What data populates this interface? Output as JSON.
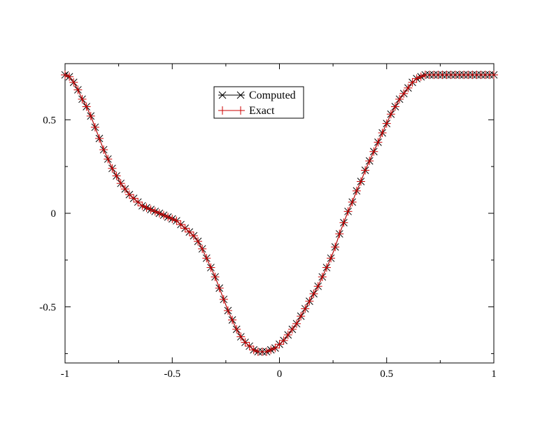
{
  "chart_data": {
    "type": "line",
    "title": "",
    "xlabel": "",
    "ylabel": "",
    "xlim": [
      -1,
      1
    ],
    "ylim": [
      -0.8,
      0.8
    ],
    "xticks": [
      -1,
      -0.5,
      0,
      0.5,
      1
    ],
    "xtick_labels": [
      "-1",
      "-0.5",
      "0",
      "0.5",
      "1"
    ],
    "yticks": [
      -0.5,
      0,
      0.5
    ],
    "ytick_labels": [
      "-0.5",
      "0",
      "0.5"
    ],
    "grid": false,
    "legend_position": "top-center",
    "x": [
      -1.0,
      -0.98,
      -0.96,
      -0.94,
      -0.92,
      -0.9,
      -0.88,
      -0.86,
      -0.84,
      -0.82,
      -0.8,
      -0.78,
      -0.76,
      -0.74,
      -0.72,
      -0.7,
      -0.68,
      -0.66,
      -0.64,
      -0.62,
      -0.6,
      -0.58,
      -0.56,
      -0.54,
      -0.52,
      -0.5,
      -0.48,
      -0.46,
      -0.44,
      -0.42,
      -0.4,
      -0.38,
      -0.36,
      -0.34,
      -0.32,
      -0.3,
      -0.28,
      -0.26,
      -0.24,
      -0.22,
      -0.2,
      -0.18,
      -0.16,
      -0.14,
      -0.12,
      -0.1,
      -0.08,
      -0.06,
      -0.04,
      -0.02,
      0.0,
      0.02,
      0.04,
      0.06,
      0.08,
      0.1,
      0.12,
      0.14,
      0.16,
      0.18,
      0.2,
      0.22,
      0.24,
      0.26,
      0.28,
      0.3,
      0.32,
      0.34,
      0.36,
      0.38,
      0.4,
      0.42,
      0.44,
      0.46,
      0.48,
      0.5,
      0.52,
      0.54,
      0.56,
      0.58,
      0.6,
      0.62,
      0.64,
      0.66,
      0.68,
      0.7,
      0.72,
      0.74,
      0.76,
      0.78,
      0.8,
      0.82,
      0.84,
      0.86,
      0.88,
      0.9,
      0.92,
      0.94,
      0.96,
      0.98,
      1.0
    ],
    "series": [
      {
        "name": "Computed",
        "color": "#000000",
        "marker": "x",
        "values": [
          0.74,
          0.73,
          0.7,
          0.66,
          0.61,
          0.57,
          0.52,
          0.46,
          0.4,
          0.34,
          0.29,
          0.24,
          0.2,
          0.16,
          0.13,
          0.1,
          0.08,
          0.06,
          0.04,
          0.03,
          0.02,
          0.01,
          0.0,
          -0.01,
          -0.02,
          -0.03,
          -0.04,
          -0.06,
          -0.08,
          -0.1,
          -0.12,
          -0.15,
          -0.19,
          -0.24,
          -0.29,
          -0.34,
          -0.4,
          -0.46,
          -0.52,
          -0.57,
          -0.62,
          -0.66,
          -0.69,
          -0.71,
          -0.73,
          -0.74,
          -0.74,
          -0.74,
          -0.73,
          -0.72,
          -0.7,
          -0.68,
          -0.65,
          -0.62,
          -0.59,
          -0.55,
          -0.51,
          -0.47,
          -0.43,
          -0.39,
          -0.34,
          -0.29,
          -0.24,
          -0.18,
          -0.11,
          -0.05,
          0.01,
          0.06,
          0.12,
          0.17,
          0.23,
          0.28,
          0.33,
          0.38,
          0.43,
          0.48,
          0.53,
          0.57,
          0.61,
          0.64,
          0.67,
          0.7,
          0.72,
          0.73,
          0.74,
          0.74,
          0.74,
          0.74,
          0.74,
          0.74,
          0.74,
          0.74,
          0.74,
          0.74,
          0.74,
          0.74,
          0.74,
          0.74,
          0.74,
          0.74,
          0.74
        ]
      },
      {
        "name": "Exact",
        "color": "#cc0000",
        "marker": "+",
        "values": [
          0.74,
          0.73,
          0.7,
          0.66,
          0.61,
          0.57,
          0.52,
          0.46,
          0.4,
          0.34,
          0.29,
          0.24,
          0.2,
          0.16,
          0.13,
          0.1,
          0.08,
          0.06,
          0.04,
          0.03,
          0.02,
          0.01,
          0.0,
          -0.01,
          -0.02,
          -0.03,
          -0.04,
          -0.06,
          -0.08,
          -0.1,
          -0.12,
          -0.15,
          -0.19,
          -0.24,
          -0.29,
          -0.34,
          -0.4,
          -0.46,
          -0.52,
          -0.57,
          -0.62,
          -0.66,
          -0.69,
          -0.71,
          -0.73,
          -0.74,
          -0.74,
          -0.74,
          -0.73,
          -0.72,
          -0.7,
          -0.68,
          -0.65,
          -0.62,
          -0.59,
          -0.55,
          -0.51,
          -0.47,
          -0.43,
          -0.39,
          -0.34,
          -0.29,
          -0.24,
          -0.18,
          -0.11,
          -0.05,
          0.01,
          0.06,
          0.12,
          0.17,
          0.23,
          0.28,
          0.33,
          0.38,
          0.43,
          0.48,
          0.53,
          0.57,
          0.61,
          0.64,
          0.67,
          0.7,
          0.72,
          0.73,
          0.74,
          0.74,
          0.74,
          0.74,
          0.74,
          0.74,
          0.74,
          0.74,
          0.74,
          0.74,
          0.74,
          0.74,
          0.74,
          0.74,
          0.74,
          0.74,
          0.74
        ]
      }
    ]
  }
}
